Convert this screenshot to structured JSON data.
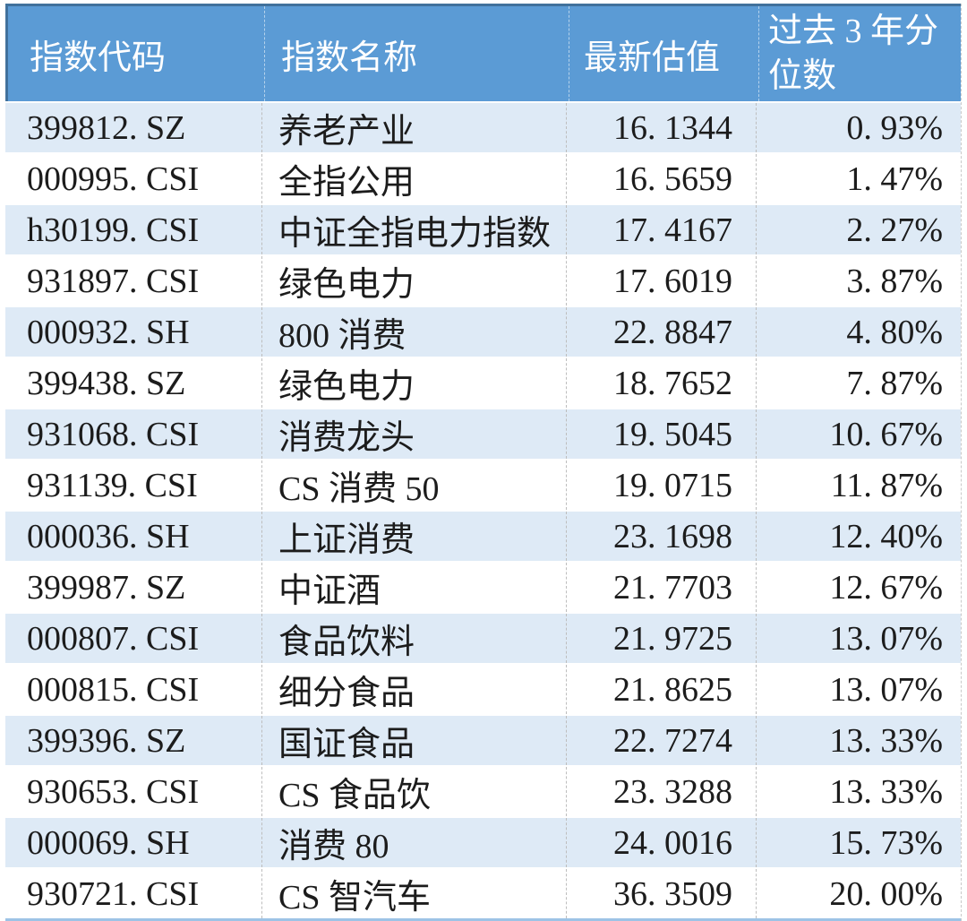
{
  "colors": {
    "header_bg": "#5B9BD5",
    "header_border": "#41719C",
    "alt_row_bg": "#DEEAF6",
    "row_bg": "#FFFFFF",
    "bottom_border": "#9DC3E6",
    "header_text": "#FFFFFF",
    "body_text": "#1C1C1C"
  },
  "table": {
    "headers": {
      "code": "指数代码",
      "name": "指数名称",
      "valuation": "最新估值",
      "percentile_line1": "过去 3 年分",
      "percentile_line2": "位数"
    },
    "rows": [
      {
        "code": "399812. SZ",
        "name": "养老产业",
        "valuation": "16. 1344",
        "percentile": "0. 93%"
      },
      {
        "code": "000995. CSI",
        "name": "全指公用",
        "valuation": "16. 5659",
        "percentile": "1. 47%"
      },
      {
        "code": "h30199. CSI",
        "name": "中证全指电力指数",
        "valuation": "17. 4167",
        "percentile": "2. 27%"
      },
      {
        "code": "931897. CSI",
        "name": "绿色电力",
        "valuation": "17. 6019",
        "percentile": "3. 87%"
      },
      {
        "code": "000932. SH",
        "name": "800 消费",
        "valuation": "22. 8847",
        "percentile": "4. 80%"
      },
      {
        "code": "399438. SZ",
        "name": "绿色电力",
        "valuation": "18. 7652",
        "percentile": "7. 87%"
      },
      {
        "code": "931068. CSI",
        "name": "消费龙头",
        "valuation": "19. 5045",
        "percentile": "10. 67%"
      },
      {
        "code": "931139. CSI",
        "name": "CS 消费 50",
        "valuation": "19. 0715",
        "percentile": "11. 87%"
      },
      {
        "code": "000036. SH",
        "name": "上证消费",
        "valuation": "23. 1698",
        "percentile": "12. 40%"
      },
      {
        "code": "399987. SZ",
        "name": "中证酒",
        "valuation": "21. 7703",
        "percentile": "12. 67%"
      },
      {
        "code": "000807. CSI",
        "name": "食品饮料",
        "valuation": "21. 9725",
        "percentile": "13. 07%"
      },
      {
        "code": "000815. CSI",
        "name": "细分食品",
        "valuation": "21. 8625",
        "percentile": "13. 07%"
      },
      {
        "code": "399396. SZ",
        "name": "国证食品",
        "valuation": "22. 7274",
        "percentile": "13. 33%"
      },
      {
        "code": "930653. CSI",
        "name": "CS 食品饮",
        "valuation": "23. 3288",
        "percentile": "13. 33%"
      },
      {
        "code": "000069. SH",
        "name": "消费 80",
        "valuation": "24. 0016",
        "percentile": "15. 73%"
      },
      {
        "code": "930721. CSI",
        "name": "CS 智汽车",
        "valuation": "36. 3509",
        "percentile": "20. 00%"
      }
    ]
  },
  "chart_data": {
    "type": "table",
    "columns": [
      "指数代码",
      "指数名称",
      "最新估值",
      "过去3年分位数"
    ],
    "rows": [
      [
        "399812.SZ",
        "养老产业",
        16.1344,
        "0.93%"
      ],
      [
        "000995.CSI",
        "全指公用",
        16.5659,
        "1.47%"
      ],
      [
        "h30199.CSI",
        "中证全指电力指数",
        17.4167,
        "2.27%"
      ],
      [
        "931897.CSI",
        "绿色电力",
        17.6019,
        "3.87%"
      ],
      [
        "000932.SH",
        "800消费",
        22.8847,
        "4.80%"
      ],
      [
        "399438.SZ",
        "绿色电力",
        18.7652,
        "7.87%"
      ],
      [
        "931068.CSI",
        "消费龙头",
        19.5045,
        "10.67%"
      ],
      [
        "931139.CSI",
        "CS消费50",
        19.0715,
        "11.87%"
      ],
      [
        "000036.SH",
        "上证消费",
        23.1698,
        "12.40%"
      ],
      [
        "399987.SZ",
        "中证酒",
        21.7703,
        "12.67%"
      ],
      [
        "000807.CSI",
        "食品饮料",
        21.9725,
        "13.07%"
      ],
      [
        "000815.CSI",
        "细分食品",
        21.8625,
        "13.07%"
      ],
      [
        "399396.SZ",
        "国证食品",
        22.7274,
        "13.33%"
      ],
      [
        "930653.CSI",
        "CS食品饮",
        23.3288,
        "13.33%"
      ],
      [
        "000069.SH",
        "消费80",
        24.0016,
        "15.73%"
      ],
      [
        "930721.CSI",
        "CS智汽车",
        36.3509,
        "20.00%"
      ]
    ]
  }
}
